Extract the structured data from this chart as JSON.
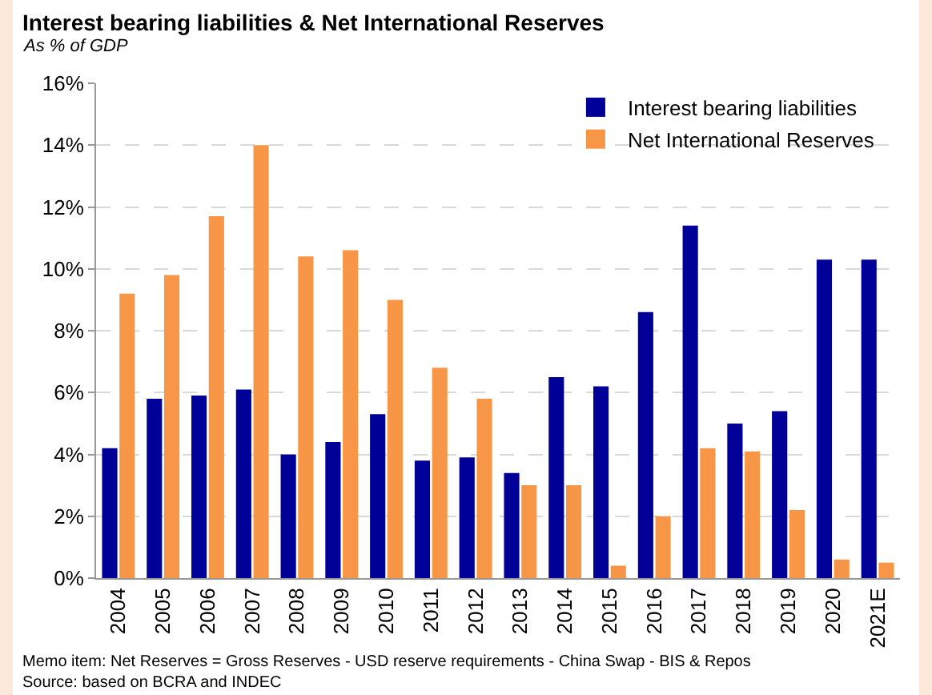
{
  "chart_data": {
    "type": "bar",
    "title": "Interest bearing liabilities & Net International Reserves",
    "subtitle": "As % of GDP",
    "categories": [
      "2004",
      "2005",
      "2006",
      "2007",
      "2008",
      "2009",
      "2010",
      "2011",
      "2012",
      "2013",
      "2014",
      "2015",
      "2016",
      "2017",
      "2018",
      "2019",
      "2020",
      "2021E"
    ],
    "series": [
      {
        "name": "Interest bearing liabilities",
        "color": "#000099",
        "values": [
          4.2,
          5.8,
          5.9,
          6.1,
          4.0,
          4.4,
          5.3,
          3.8,
          3.9,
          3.4,
          6.5,
          6.2,
          8.6,
          11.4,
          5.0,
          5.4,
          10.3,
          10.3
        ]
      },
      {
        "name": "Net International Reserves",
        "color": "#f79646",
        "values": [
          9.2,
          9.8,
          11.7,
          14.0,
          10.4,
          10.6,
          9.0,
          6.8,
          5.8,
          3.0,
          3.0,
          0.4,
          2.0,
          4.2,
          4.1,
          2.2,
          0.6,
          0.5
        ]
      }
    ],
    "ylim": [
      0,
      16
    ],
    "yticks": [
      {
        "value": 0,
        "label": "0%"
      },
      {
        "value": 2,
        "label": "2%"
      },
      {
        "value": 4,
        "label": "4%"
      },
      {
        "value": 6,
        "label": "6%"
      },
      {
        "value": 8,
        "label": "8%"
      },
      {
        "value": 10,
        "label": "10%"
      },
      {
        "value": 12,
        "label": "12%"
      },
      {
        "value": 14,
        "label": "14%"
      },
      {
        "value": 16,
        "label": "16%"
      }
    ],
    "grid": "y",
    "legend": "top right",
    "annotations": [
      "Memo item: Net Reserves = Gross Reserves - USD reserve requirements - China Swap - BIS & Repos",
      "Source: based on BCRA and INDEC"
    ]
  }
}
